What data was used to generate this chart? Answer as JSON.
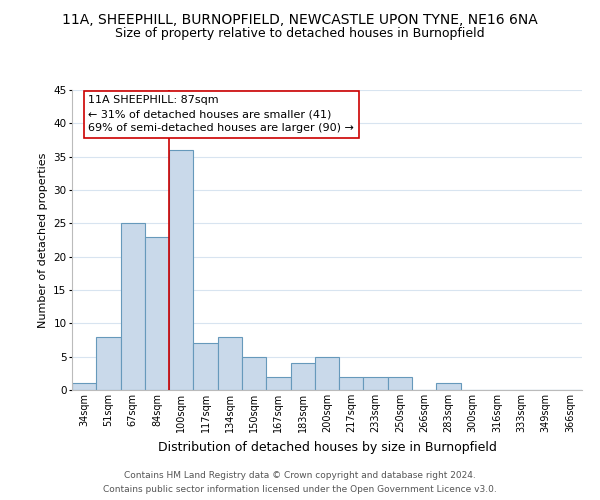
{
  "title": "11A, SHEEPHILL, BURNOPFIELD, NEWCASTLE UPON TYNE, NE16 6NA",
  "subtitle": "Size of property relative to detached houses in Burnopfield",
  "xlabel": "Distribution of detached houses by size in Burnopfield",
  "ylabel": "Number of detached properties",
  "bar_color": "#c9d9ea",
  "bar_edge_color": "#6699bb",
  "bin_labels": [
    "34sqm",
    "51sqm",
    "67sqm",
    "84sqm",
    "100sqm",
    "117sqm",
    "134sqm",
    "150sqm",
    "167sqm",
    "183sqm",
    "200sqm",
    "217sqm",
    "233sqm",
    "250sqm",
    "266sqm",
    "283sqm",
    "300sqm",
    "316sqm",
    "333sqm",
    "349sqm",
    "366sqm"
  ],
  "bar_values": [
    1,
    8,
    25,
    23,
    36,
    7,
    8,
    5,
    2,
    4,
    5,
    2,
    2,
    2,
    0,
    1,
    0,
    0,
    0,
    0,
    0
  ],
  "ylim": [
    0,
    45
  ],
  "yticks": [
    0,
    5,
    10,
    15,
    20,
    25,
    30,
    35,
    40,
    45
  ],
  "vline_index": 3.5,
  "vline_color": "#cc0000",
  "annotation_title": "11A SHEEPHILL: 87sqm",
  "annotation_line1": "← 31% of detached houses are smaller (41)",
  "annotation_line2": "69% of semi-detached houses are larger (90) →",
  "annotation_box_color": "#ffffff",
  "annotation_box_edge": "#cc0000",
  "footer_line1": "Contains HM Land Registry data © Crown copyright and database right 2024.",
  "footer_line2": "Contains public sector information licensed under the Open Government Licence v3.0.",
  "background_color": "#ffffff",
  "grid_color": "#d8e4f0",
  "title_fontsize": 10,
  "subtitle_fontsize": 9,
  "xlabel_fontsize": 9,
  "ylabel_fontsize": 8
}
